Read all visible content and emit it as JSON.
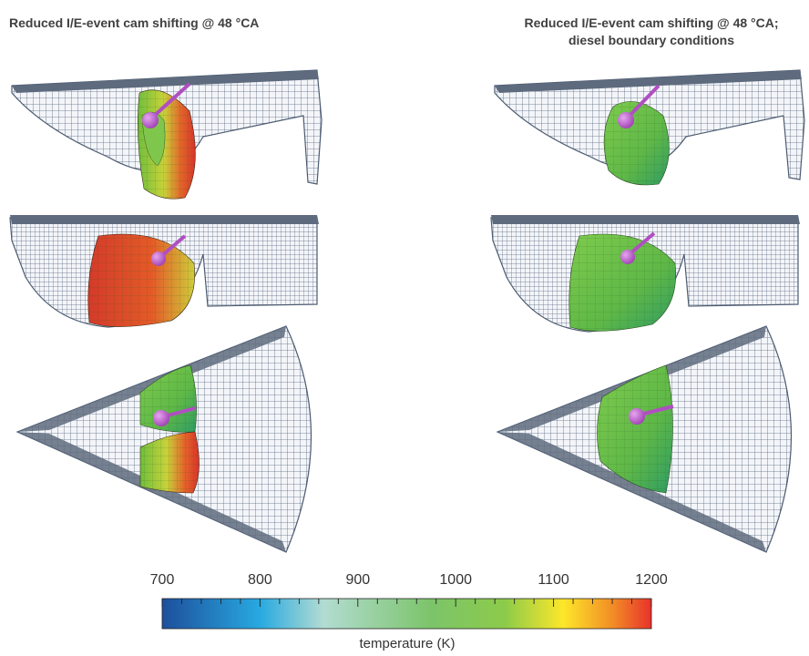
{
  "titles": {
    "left": "Reduced I/E-event cam shifting @ 48 °CA",
    "right_line1": "Reduced I/E-event cam shifting @ 48 °CA;",
    "right_line2": "diesel boundary conditions"
  },
  "colorbar": {
    "min": 700,
    "max": 1200,
    "ticks": [
      "700",
      "800",
      "900",
      "1000",
      "1100",
      "1200"
    ],
    "label": "temperature (K)",
    "colors": [
      "#1d4f9c",
      "#28a9e0",
      "#b2dcd2",
      "#7cc46a",
      "#8ccb4a",
      "#fde72a",
      "#f28d26",
      "#e8322b"
    ]
  },
  "colors": {
    "mesh": "#59687d",
    "mesh_fill": "#eef1f6",
    "injector": "#b04ec2"
  }
}
